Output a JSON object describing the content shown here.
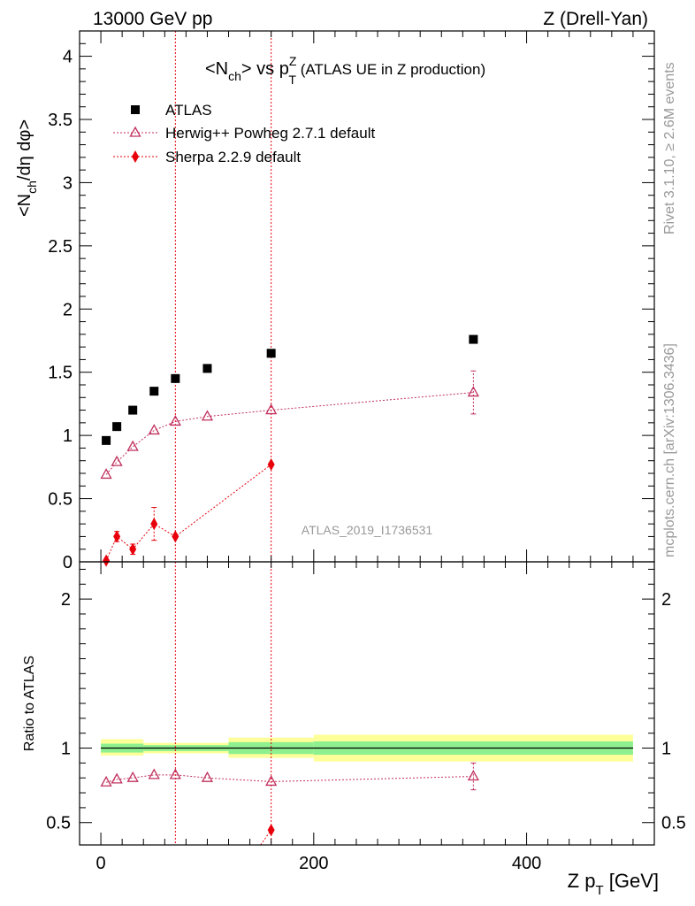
{
  "header": {
    "left": "13000 GeV pp",
    "right": "Z (Drell-Yan)"
  },
  "side": {
    "rivet": "Rivet 3.1.10, ≥ 2.6M events",
    "mcplots": "mcplots.cern.ch [arXiv:1306.3436]"
  },
  "chart_data": {
    "type": "scatter",
    "title_main": "<N",
    "title_sub1": "ch",
    "title_mid": "> vs p",
    "title_sup": "Z",
    "title_sub2": "T",
    "title_tail": " (ATLAS UE in Z production)",
    "ylabel_top": "<N",
    "ylabel_top_sub": "ch",
    "ylabel_top_tail": "/dη dφ>",
    "ylabel_ratio": "Ratio to ATLAS",
    "xlabel_main": "Z p",
    "xlabel_sub": "T",
    "xlabel_tail": " [GeV]",
    "watermark": "ATLAS_2019_I1736531",
    "xlim": [
      -20,
      520
    ],
    "ylim_top": [
      0,
      4.2
    ],
    "ylim_ratio": [
      0.35,
      2.25
    ],
    "xticks": [
      0,
      200,
      400
    ],
    "yticks_top": [
      0,
      0.5,
      1,
      1.5,
      2,
      2.5,
      3,
      3.5,
      4
    ],
    "yticks_top_labels": [
      "0",
      "0.5",
      "1",
      "1.5",
      "2",
      "2.5",
      "3",
      "3.5",
      "4"
    ],
    "yticks_ratio": [
      0.5,
      1,
      2
    ],
    "yticks_ratio_labels": [
      "0.5",
      "1",
      "2"
    ],
    "legend_position": "top-left",
    "series": [
      {
        "name": "ATLAS",
        "color": "#000000",
        "marker": "square",
        "x": [
          5,
          15,
          30,
          50,
          70,
          100,
          160,
          350
        ],
        "y": [
          0.96,
          1.07,
          1.2,
          1.35,
          1.45,
          1.53,
          1.65,
          1.76
        ]
      },
      {
        "name": "Herwig++ Powheg 2.7.1 default",
        "color": "#c0305e",
        "marker": "triangle",
        "x": [
          5,
          15,
          30,
          50,
          70,
          100,
          160,
          350
        ],
        "y": [
          0.69,
          0.79,
          0.91,
          1.04,
          1.11,
          1.15,
          1.2,
          1.34
        ],
        "yerr": [
          0,
          0,
          0,
          0,
          0,
          0,
          0,
          0.17
        ],
        "ratio": [
          0.77,
          0.79,
          0.8,
          0.82,
          0.82,
          0.8,
          0.775,
          0.81
        ],
        "ratio_err": [
          0,
          0,
          0,
          0,
          0,
          0,
          0,
          0.09
        ]
      },
      {
        "name": "Sherpa 2.2.9 default",
        "color": "#e8000b",
        "marker": "diamond",
        "x": [
          5,
          15,
          30,
          50,
          70,
          160
        ],
        "y": [
          0.01,
          0.2,
          0.1,
          0.3,
          0.2,
          0.77
        ],
        "yerr": [
          0,
          0.04,
          0.04,
          0.13,
          0,
          0
        ],
        "ratio": [
          0.45
        ],
        "ratio_x": [
          160
        ]
      }
    ],
    "ratio_bands": [
      {
        "x0": 0,
        "x1": 40,
        "inner": [
          0.97,
          1.03
        ],
        "outer": [
          0.95,
          1.06
        ]
      },
      {
        "x0": 40,
        "x1": 120,
        "inner": [
          0.98,
          1.02
        ],
        "outer": [
          0.965,
          1.035
        ]
      },
      {
        "x0": 120,
        "x1": 200,
        "inner": [
          0.96,
          1.04
        ],
        "outer": [
          0.935,
          1.07
        ]
      },
      {
        "x0": 200,
        "x1": 500,
        "inner": [
          0.955,
          1.045
        ],
        "outer": [
          0.91,
          1.09
        ]
      }
    ],
    "band_colors": {
      "inner": "#8ef08e",
      "outer": "#ffff99"
    },
    "vlines_x": [
      70,
      160
    ]
  }
}
